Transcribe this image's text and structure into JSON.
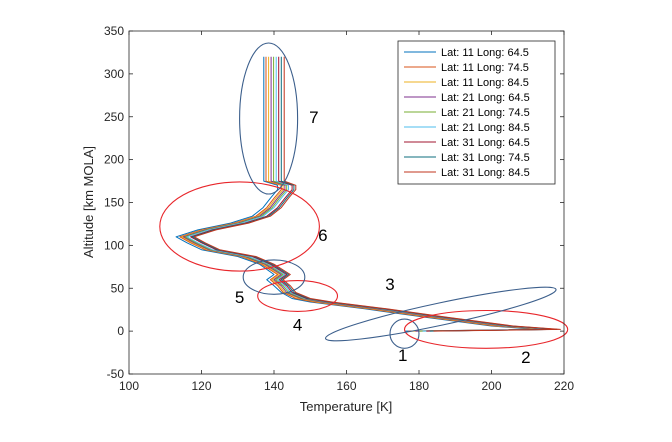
{
  "chart_data": {
    "type": "line",
    "title": "",
    "xlabel": "Temperature [K]",
    "ylabel": "Altitude [km MOLA]",
    "xlim": [
      100,
      220
    ],
    "ylim": [
      -50,
      350
    ],
    "xticks": [
      "100",
      "120",
      "140",
      "160",
      "180",
      "200",
      "220"
    ],
    "yticks": [
      "-50",
      "0",
      "50",
      "100",
      "150",
      "200",
      "250",
      "300",
      "350"
    ],
    "grid": false,
    "legend_position": "top-right",
    "series": [
      {
        "name": "Lat: 11 Long: 64.5",
        "color": "#0072BD",
        "x": [
          176,
          212,
          200,
          182,
          165,
          150,
          145,
          142,
          140,
          138,
          140,
          136,
          130,
          120,
          116,
          113,
          119,
          128,
          134,
          137,
          139,
          141,
          141,
          137.2,
          137.2
        ],
        "y": [
          0,
          2,
          6,
          16,
          26,
          34,
          38,
          45,
          53,
          60,
          66,
          78,
          87,
          95,
          103,
          110,
          118,
          126,
          134,
          144,
          155,
          165,
          170,
          175,
          320
        ]
      },
      {
        "name": "Lat: 11 Long: 74.5",
        "color": "#D95319",
        "x": [
          177,
          214,
          201,
          183,
          166,
          151,
          146,
          142.5,
          141,
          139,
          141,
          136.5,
          131,
          121,
          117,
          114,
          120,
          129,
          135,
          138,
          140,
          142,
          142,
          137.8,
          137.8
        ],
        "y": [
          0,
          2,
          6,
          16,
          26,
          34,
          38,
          45,
          53,
          60,
          66,
          78,
          87,
          95,
          103,
          110,
          118,
          126,
          134,
          144,
          155,
          165,
          170,
          175,
          320
        ]
      },
      {
        "name": "Lat: 11 Long: 84.5",
        "color": "#EDB120",
        "x": [
          178,
          215,
          202,
          184,
          167,
          152,
          147,
          143,
          141.5,
          139.5,
          141.5,
          137,
          131.5,
          121.5,
          117.5,
          114.5,
          120.5,
          129.5,
          135.5,
          138.5,
          140.5,
          142.5,
          142.5,
          138.5,
          138.5
        ],
        "y": [
          0,
          2,
          6,
          16,
          26,
          34,
          38,
          45,
          53,
          60,
          66,
          78,
          87,
          95,
          103,
          110,
          118,
          126,
          134,
          144,
          155,
          165,
          170,
          175,
          320
        ]
      },
      {
        "name": "Lat: 21 Long: 64.5",
        "color": "#7E2F8E",
        "x": [
          179,
          216,
          203,
          185,
          168,
          153,
          147.5,
          143.5,
          142,
          140,
          142,
          137.5,
          132,
          122,
          118,
          115,
          121,
          130,
          136,
          139,
          141,
          143,
          143,
          139.2,
          139.2
        ],
        "y": [
          0,
          2,
          6,
          16,
          26,
          34,
          38,
          45,
          53,
          60,
          66,
          78,
          87,
          95,
          103,
          110,
          118,
          126,
          134,
          144,
          155,
          165,
          170,
          175,
          320
        ]
      },
      {
        "name": "Lat: 21 Long: 74.5",
        "color": "#77AC30",
        "x": [
          180,
          217,
          204,
          186,
          169,
          154,
          148,
          144,
          142.5,
          140.5,
          142.5,
          138,
          132.5,
          122.5,
          118.5,
          115.5,
          121.5,
          130.5,
          136.5,
          139.5,
          141.5,
          143.5,
          143.5,
          139.9,
          139.9
        ],
        "y": [
          0,
          2,
          6,
          16,
          26,
          34,
          38,
          45,
          53,
          60,
          66,
          78,
          87,
          95,
          103,
          110,
          118,
          126,
          134,
          144,
          155,
          165,
          170,
          175,
          320
        ]
      },
      {
        "name": "Lat: 21 Long: 84.5",
        "color": "#4DBEEE",
        "x": [
          181,
          217,
          204.5,
          186.5,
          169.5,
          154.5,
          148.5,
          144.5,
          143,
          141,
          143,
          138.5,
          133,
          123,
          119,
          116,
          122,
          131,
          137,
          140,
          142,
          144,
          144,
          140.6,
          140.6
        ],
        "y": [
          0,
          2,
          6,
          16,
          26,
          34,
          38,
          45,
          53,
          60,
          66,
          78,
          87,
          95,
          103,
          110,
          118,
          126,
          134,
          144,
          155,
          165,
          170,
          175,
          320
        ]
      },
      {
        "name": "Lat: 31 Long: 64.5",
        "color": "#A2142F",
        "x": [
          182,
          218,
          205,
          187,
          170,
          155,
          149,
          145,
          143.5,
          141.5,
          143.5,
          139,
          134,
          124,
          120,
          117,
          123,
          132,
          138,
          141,
          143,
          145,
          145,
          141.3,
          141.3
        ],
        "y": [
          0,
          2,
          6,
          16,
          26,
          34,
          38,
          45,
          53,
          60,
          66,
          78,
          87,
          95,
          103,
          110,
          118,
          126,
          134,
          144,
          155,
          165,
          170,
          175,
          320
        ]
      },
      {
        "name": "Lat: 31 Long: 74.5",
        "color": "#0E6E7E",
        "x": [
          183,
          218,
          205.5,
          187.5,
          170.5,
          155.5,
          149.5,
          145.5,
          144,
          142,
          144,
          139.5,
          134.5,
          124.5,
          120.5,
          117.5,
          123.5,
          132.5,
          138.5,
          141.5,
          143.5,
          145.5,
          145.5,
          142.0,
          142.0
        ],
        "y": [
          0,
          2,
          6,
          16,
          26,
          34,
          38,
          45,
          53,
          60,
          66,
          78,
          87,
          95,
          103,
          110,
          118,
          126,
          134,
          144,
          155,
          165,
          170,
          175,
          320
        ]
      },
      {
        "name": "Lat: 31 Long: 84.5",
        "color": "#C0341D",
        "x": [
          184,
          219,
          206,
          188,
          171,
          156,
          150,
          146,
          144.5,
          142.5,
          144.5,
          140,
          135,
          125,
          121,
          118,
          124,
          133,
          139,
          142,
          144,
          146,
          146,
          142.8,
          142.8
        ],
        "y": [
          0,
          2,
          6,
          16,
          26,
          34,
          38,
          45,
          53,
          60,
          66,
          78,
          87,
          95,
          103,
          110,
          118,
          126,
          134,
          144,
          155,
          165,
          170,
          175,
          320
        ]
      }
    ],
    "annotations": [
      {
        "label": "1",
        "text_xy": [
          175.5,
          -28
        ],
        "ellipse": {
          "cx": 176,
          "cy": -3,
          "rx": 4,
          "ry": 17,
          "rot": 0
        },
        "color": "#3C5F8C"
      },
      {
        "label": "2",
        "text_xy": [
          209.5,
          -30
        ],
        "ellipse": {
          "cx": 198.5,
          "cy": 2,
          "rx": 22.5,
          "ry": 22,
          "rot": 0
        },
        "color": "#E8262B"
      },
      {
        "label": "3",
        "text_xy": [
          172,
          55
        ],
        "ellipse": {
          "cx": 186,
          "cy": 20,
          "rx": 32.5,
          "ry": 13,
          "rot": 12
        },
        "color": "#3C5F8C"
      },
      {
        "label": "4",
        "text_xy": [
          146.5,
          8
        ],
        "ellipse": {
          "cx": 146.5,
          "cy": 41,
          "rx": 11,
          "ry": 18,
          "rot": 0
        },
        "color": "#E8262B"
      },
      {
        "label": "5",
        "text_xy": [
          130.5,
          40
        ],
        "ellipse": {
          "cx": 140,
          "cy": 63,
          "rx": 8.5,
          "ry": 20,
          "rot": 0
        },
        "color": "#3C5F8C"
      },
      {
        "label": "6",
        "text_xy": [
          153.5,
          112
        ],
        "ellipse": {
          "cx": 130.5,
          "cy": 122,
          "rx": 22,
          "ry": 52,
          "rot": 0
        },
        "color": "#E8262B"
      },
      {
        "label": "7",
        "text_xy": [
          151,
          250
        ],
        "ellipse": {
          "cx": 138.5,
          "cy": 248,
          "rx": 8,
          "ry": 88,
          "rot": 0
        },
        "color": "#3C5F8C"
      }
    ]
  }
}
